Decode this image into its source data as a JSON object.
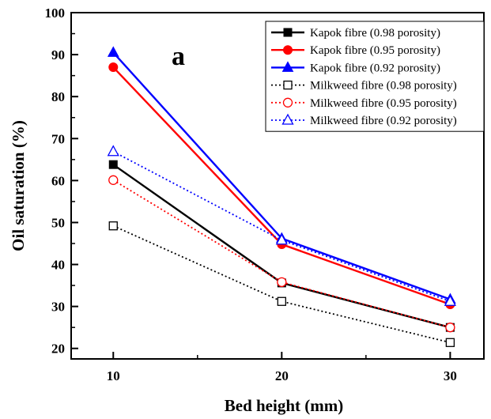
{
  "chart_data": {
    "type": "line",
    "panel_label": "a",
    "xlabel": "Bed height (mm)",
    "ylabel": "Oil saturation (%)",
    "xlim": [
      7.5,
      32
    ],
    "ylim": [
      17.5,
      100
    ],
    "x_ticks": [
      10,
      20,
      30
    ],
    "y_ticks": [
      20,
      30,
      40,
      50,
      60,
      70,
      80,
      90,
      100
    ],
    "legend_position": "top-right",
    "grid": false,
    "x": [
      10,
      20,
      30
    ],
    "series": [
      {
        "name": "Kapok fibre (0.98 porosity)",
        "values": [
          63.8,
          35.6,
          25.0
        ],
        "color": "#000000",
        "style": "solid",
        "marker": "square",
        "filled": true
      },
      {
        "name": "Kapok fibre (0.95 porosity)",
        "values": [
          87.0,
          44.8,
          30.5
        ],
        "color": "#ff0000",
        "style": "solid",
        "marker": "circle",
        "filled": true
      },
      {
        "name": "Kapok fibre (0.92 porosity)",
        "values": [
          90.5,
          46.2,
          31.7
        ],
        "color": "#0000ff",
        "style": "solid",
        "marker": "triangle",
        "filled": true
      },
      {
        "name": "Milkweed fibre (0.98 porosity)",
        "values": [
          49.2,
          31.2,
          21.4
        ],
        "color": "#000000",
        "style": "dotted",
        "marker": "square",
        "filled": false
      },
      {
        "name": "Milkweed fibre (0.95 porosity)",
        "values": [
          60.1,
          35.8,
          25.0
        ],
        "color": "#ff0000",
        "style": "dotted",
        "marker": "circle",
        "filled": false
      },
      {
        "name": "Milkweed fibre (0.92 porosity)",
        "values": [
          66.9,
          45.8,
          31.2
        ],
        "color": "#0000ff",
        "style": "dotted",
        "marker": "triangle",
        "filled": false
      }
    ]
  }
}
